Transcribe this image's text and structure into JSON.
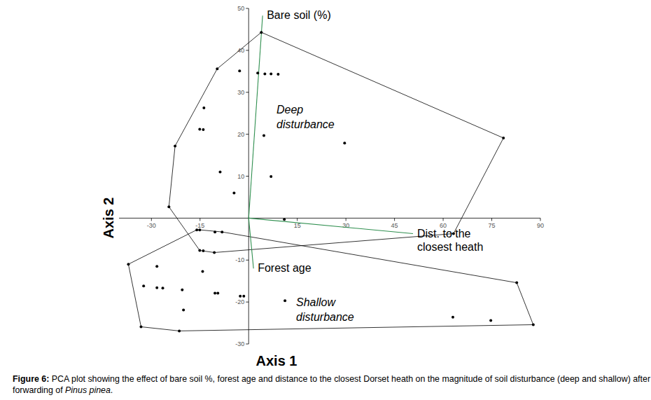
{
  "chart_data": {
    "type": "scatter",
    "x_label": "Axis 1",
    "y_label": "Axis 2",
    "caption": [
      "Figure 6:",
      " PCA plot showing the effect of bare soil %, forest age and distance to the closest Dorset heath on the magnitude of soil disturbance (deep and shallow) after forwarding of ",
      "Pinus pinea",
      "."
    ],
    "xlim": [
      -40,
      90
    ],
    "ylim": [
      -30,
      50
    ],
    "xticks": [
      -30,
      -15,
      15,
      30,
      45,
      60,
      75,
      90
    ],
    "yticks": [
      -30,
      -20,
      -10,
      10,
      20,
      30,
      40,
      50
    ],
    "grid": false,
    "marker": "circle",
    "series": [
      {
        "name": "Deep disturbance",
        "label": [
          "Deep",
          "disturbance"
        ],
        "color": "#000000",
        "x": [
          3.9,
          -9.7,
          -2.8,
          2.8,
          5.0,
          6.9,
          9.1,
          -13.8,
          -15.1,
          -14.0,
          4.7,
          -22.7,
          29.6,
          78.6,
          -8.8,
          6.9,
          -4.5,
          -24.6,
          11.0,
          63.2,
          -15.1,
          -14.0,
          -10.6
        ],
        "y": [
          44.3,
          35.6,
          35.1,
          34.6,
          34.4,
          34.4,
          34.3,
          26.3,
          21.2,
          21.1,
          19.7,
          17.2,
          17.9,
          19.1,
          11.0,
          9.9,
          6.0,
          2.7,
          -0.3,
          -3.7,
          -7.7,
          -7.8,
          -8.2
        ]
      },
      {
        "name": "Shallow disturbance",
        "label": [
          "Shallow",
          "disturbance"
        ],
        "color": "#000000",
        "x": [
          -37.1,
          -16.0,
          -15.1,
          -10.4,
          -8.2,
          -28.3,
          -14.2,
          -32.4,
          -28.3,
          -26.5,
          -20.5,
          -10.4,
          -9.5,
          -2.6,
          -1.5,
          11.2,
          -20.1,
          -33.2,
          -21.4,
          63.0,
          74.7,
          82.7,
          87.8
        ],
        "y": [
          -11.0,
          -2.8,
          -2.8,
          -3.3,
          -3.3,
          -11.5,
          -12.7,
          -16.2,
          -16.6,
          -16.7,
          -17.1,
          -17.9,
          -17.9,
          -18.6,
          -18.6,
          -19.7,
          -21.9,
          -25.9,
          -26.9,
          -23.6,
          -24.4,
          -15.4,
          -25.4
        ]
      }
    ],
    "vectors": [
      {
        "name": "Bare soil (%)",
        "label": [
          "Bare soil (%)"
        ],
        "color": "#2f8f4f",
        "x": 4.3,
        "y": 48.3
      },
      {
        "name": "Dist. to the closest heath",
        "label": [
          "Dist. to the",
          "closest heath"
        ],
        "color": "#2f8f4f",
        "x": 50.7,
        "y": -3.7
      },
      {
        "name": "Forest age",
        "label": [
          "Forest age"
        ],
        "color": "#2f8f4f",
        "x": 1.5,
        "y": -12.0
      }
    ]
  }
}
